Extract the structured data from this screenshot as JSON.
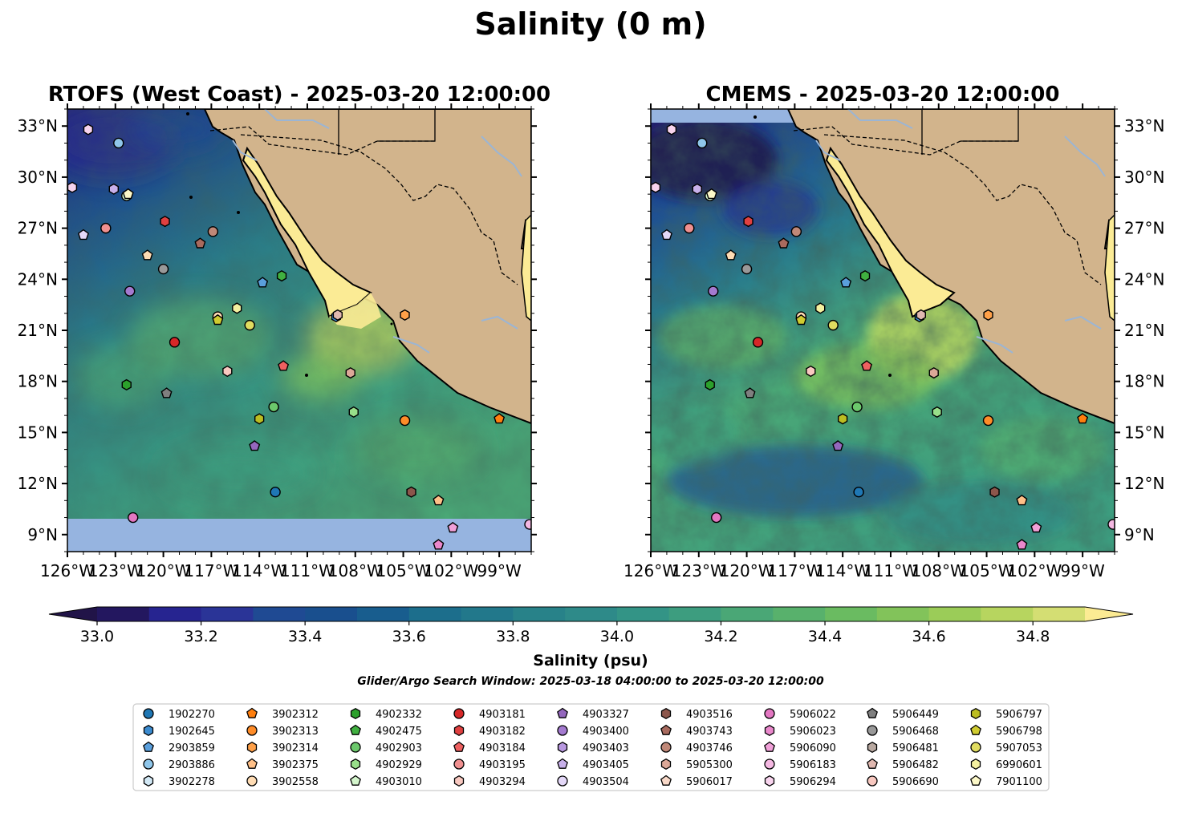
{
  "figure": {
    "title": "Salinity (0 m)",
    "window_note": "Glider/Argo Search Window: 2025-03-18 04:00:00 to 2025-03-20 12:00:00"
  },
  "panels": [
    {
      "title": "RTOFS (West Coast) - 2025-03-20 12:00:00"
    },
    {
      "title": "CMEMS - 2025-03-20 12:00:00"
    }
  ],
  "map_extent": {
    "lon": [
      -126,
      -97
    ],
    "lat": [
      8,
      34
    ]
  },
  "lon_ticks": [
    "126°W",
    "123°W",
    "120°W",
    "117°W",
    "114°W",
    "111°W",
    "108°W",
    "105°W",
    "102°W",
    "99°W"
  ],
  "lat_ticks": [
    "9°N",
    "12°N",
    "15°N",
    "18°N",
    "21°N",
    "24°N",
    "27°N",
    "30°N",
    "33°N"
  ],
  "colorbar": {
    "label": "Salinity (psu)",
    "range": [
      32.9,
      35.0
    ],
    "ticks": [
      "33.0",
      "33.2",
      "33.4",
      "33.6",
      "33.8",
      "34.0",
      "34.2",
      "34.4",
      "34.6",
      "34.8"
    ],
    "extend": "both",
    "colors": [
      "#23175f",
      "#262490",
      "#2a3497",
      "#1f4a93",
      "#194f8e",
      "#185d8e",
      "#1c6e8c",
      "#22788b",
      "#288289",
      "#2e8a89",
      "#339486",
      "#3d9d7f",
      "#4aa776",
      "#58b16c",
      "#6abb61",
      "#82c35a",
      "#9bcc58",
      "#b7d55f",
      "#d4de73"
    ],
    "under_color": "#211448",
    "over_color": "#fceb93"
  },
  "colors": {
    "land": "#d2b48c",
    "nodata": "#96b4e0",
    "gulf": "#fbeb95"
  },
  "legend_items": [
    {
      "label": "1902270",
      "marker": "circle",
      "color": "#1f77b4"
    },
    {
      "label": "1902645",
      "marker": "hexagon",
      "color": "#3b8bd0"
    },
    {
      "label": "2903859",
      "marker": "pentagon",
      "color": "#5a9fdc"
    },
    {
      "label": "2903886",
      "marker": "circle",
      "color": "#8fc6ea"
    },
    {
      "label": "3902278",
      "marker": "hexagon",
      "color": "#d2e8f5"
    },
    {
      "label": "3902312",
      "marker": "pentagon",
      "color": "#ff7f0e"
    },
    {
      "label": "3902313",
      "marker": "circle",
      "color": "#ff8c28"
    },
    {
      "label": "3902314",
      "marker": "hexagon",
      "color": "#ffa048"
    },
    {
      "label": "3902375",
      "marker": "pentagon",
      "color": "#ffc088"
    },
    {
      "label": "3902558",
      "marker": "circle",
      "color": "#ffdcb4"
    },
    {
      "label": "4902332",
      "marker": "hexagon",
      "color": "#2ca02c"
    },
    {
      "label": "4902475",
      "marker": "pentagon",
      "color": "#40b040"
    },
    {
      "label": "4902903",
      "marker": "circle",
      "color": "#6cc86c"
    },
    {
      "label": "4902929",
      "marker": "hexagon",
      "color": "#98df8a"
    },
    {
      "label": "4903010",
      "marker": "pentagon",
      "color": "#d4f5cc"
    },
    {
      "label": "4903181",
      "marker": "circle",
      "color": "#d62728"
    },
    {
      "label": "4903182",
      "marker": "hexagon",
      "color": "#e04040"
    },
    {
      "label": "4903184",
      "marker": "pentagon",
      "color": "#ee6060"
    },
    {
      "label": "4903195",
      "marker": "circle",
      "color": "#f09090"
    },
    {
      "label": "4903294",
      "marker": "hexagon",
      "color": "#f8c8c0"
    },
    {
      "label": "4903327",
      "marker": "pentagon",
      "color": "#9467bd"
    },
    {
      "label": "4903400",
      "marker": "circle",
      "color": "#a47ad0"
    },
    {
      "label": "4903403",
      "marker": "hexagon",
      "color": "#b898e0"
    },
    {
      "label": "4903405",
      "marker": "pentagon",
      "color": "#c8b0ea"
    },
    {
      "label": "4903504",
      "marker": "circle",
      "color": "#e4d8f8"
    },
    {
      "label": "4903516",
      "marker": "hexagon",
      "color": "#8c564b"
    },
    {
      "label": "4903743",
      "marker": "pentagon",
      "color": "#a86a5e"
    },
    {
      "label": "4903746",
      "marker": "circle",
      "color": "#c08878"
    },
    {
      "label": "5905300",
      "marker": "hexagon",
      "color": "#dca898"
    },
    {
      "label": "5906017",
      "marker": "pentagon",
      "color": "#f8d8c8"
    },
    {
      "label": "5906022",
      "marker": "circle",
      "color": "#e377c2"
    },
    {
      "label": "5906023",
      "marker": "hexagon",
      "color": "#ea88cc"
    },
    {
      "label": "5906090",
      "marker": "pentagon",
      "color": "#f0a0d8"
    },
    {
      "label": "5906183",
      "marker": "circle",
      "color": "#f4b8e2"
    },
    {
      "label": "5906294",
      "marker": "hexagon",
      "color": "#f8d4ee"
    },
    {
      "label": "5906449",
      "marker": "pentagon",
      "color": "#7f7f7f"
    },
    {
      "label": "5906468",
      "marker": "circle",
      "color": "#999999"
    },
    {
      "label": "5906481",
      "marker": "hexagon",
      "color": "#b8a8a0"
    },
    {
      "label": "5906482",
      "marker": "pentagon",
      "color": "#e0b8b0"
    },
    {
      "label": "5906690",
      "marker": "circle",
      "color": "#f8c8c0"
    },
    {
      "label": "5906797",
      "marker": "hexagon",
      "color": "#bcbd22"
    },
    {
      "label": "5906798",
      "marker": "pentagon",
      "color": "#d0cc30"
    },
    {
      "label": "5907053",
      "marker": "circle",
      "color": "#e0dc60"
    },
    {
      "label": "6990601",
      "marker": "hexagon",
      "color": "#f4f0a0"
    },
    {
      "label": "7901100",
      "marker": "pentagon",
      "color": "#fcf8c8"
    }
  ],
  "floats": [
    {
      "lon": -124.7,
      "lat": 32.8,
      "marker": "hexagon",
      "color": "#f8d4ee"
    },
    {
      "lon": -122.8,
      "lat": 32.0,
      "marker": "circle",
      "color": "#8fc6ea"
    },
    {
      "lon": -125.7,
      "lat": 29.4,
      "marker": "hexagon",
      "color": "#f8d4ee"
    },
    {
      "lon": -123.1,
      "lat": 29.3,
      "marker": "hexagon",
      "color": "#c8b0ea"
    },
    {
      "lon": -122.3,
      "lat": 28.9,
      "marker": "circle",
      "color": "#d4f5cc"
    },
    {
      "lon": -122.2,
      "lat": 29.0,
      "marker": "pentagon",
      "color": "#fcf8c8"
    },
    {
      "lon": -125.0,
      "lat": 26.6,
      "marker": "pentagon",
      "color": "#e4d8f8"
    },
    {
      "lon": -123.6,
      "lat": 27.0,
      "marker": "circle",
      "color": "#f09090"
    },
    {
      "lon": -119.9,
      "lat": 27.4,
      "marker": "hexagon",
      "color": "#e04040"
    },
    {
      "lon": -116.9,
      "lat": 26.8,
      "marker": "circle",
      "color": "#c08878"
    },
    {
      "lon": -117.7,
      "lat": 26.1,
      "marker": "pentagon",
      "color": "#a86a5e"
    },
    {
      "lon": -121.0,
      "lat": 25.4,
      "marker": "pentagon",
      "color": "#ffdcb4"
    },
    {
      "lon": -120.0,
      "lat": 24.6,
      "marker": "circle",
      "color": "#999999"
    },
    {
      "lon": -113.8,
      "lat": 23.8,
      "marker": "pentagon",
      "color": "#5a9fdc"
    },
    {
      "lon": -112.6,
      "lat": 24.2,
      "marker": "hexagon",
      "color": "#40b040"
    },
    {
      "lon": -122.1,
      "lat": 23.3,
      "marker": "circle",
      "color": "#a47ad0"
    },
    {
      "lon": -115.4,
      "lat": 22.3,
      "marker": "hexagon",
      "color": "#f4f0a0"
    },
    {
      "lon": -116.6,
      "lat": 21.8,
      "marker": "circle",
      "color": "#ffdcb4"
    },
    {
      "lon": -116.6,
      "lat": 21.6,
      "marker": "pentagon",
      "color": "#d0cc30"
    },
    {
      "lon": -114.6,
      "lat": 21.3,
      "marker": "circle",
      "color": "#e0dc60"
    },
    {
      "lon": -109.2,
      "lat": 21.8,
      "marker": "hexagon",
      "color": "#3b8bd0"
    },
    {
      "lon": -109.1,
      "lat": 21.9,
      "marker": "hexagon",
      "color": "#e0b8b0"
    },
    {
      "lon": -104.9,
      "lat": 21.9,
      "marker": "hexagon",
      "color": "#ffa048"
    },
    {
      "lon": -119.3,
      "lat": 20.3,
      "marker": "circle",
      "color": "#d62728"
    },
    {
      "lon": -116.0,
      "lat": 18.6,
      "marker": "hexagon",
      "color": "#f8c8c0"
    },
    {
      "lon": -112.5,
      "lat": 18.9,
      "marker": "pentagon",
      "color": "#ee6060"
    },
    {
      "lon": -108.3,
      "lat": 18.5,
      "marker": "hexagon",
      "color": "#dca898"
    },
    {
      "lon": -122.3,
      "lat": 17.8,
      "marker": "hexagon",
      "color": "#2ca02c"
    },
    {
      "lon": -119.8,
      "lat": 17.3,
      "marker": "pentagon",
      "color": "#7f7f7f"
    },
    {
      "lon": -113.1,
      "lat": 16.5,
      "marker": "circle",
      "color": "#6cc86c"
    },
    {
      "lon": -114.0,
      "lat": 15.8,
      "marker": "hexagon",
      "color": "#bcbd22"
    },
    {
      "lon": -108.1,
      "lat": 16.2,
      "marker": "hexagon",
      "color": "#98df8a"
    },
    {
      "lon": -104.9,
      "lat": 15.7,
      "marker": "circle",
      "color": "#ff8c28"
    },
    {
      "lon": -99.0,
      "lat": 15.8,
      "marker": "pentagon",
      "color": "#ff7f0e"
    },
    {
      "lon": -114.3,
      "lat": 14.2,
      "marker": "pentagon",
      "color": "#9467bd"
    },
    {
      "lon": -113.0,
      "lat": 11.5,
      "marker": "circle",
      "color": "#1f77b4"
    },
    {
      "lon": -104.5,
      "lat": 11.5,
      "marker": "hexagon",
      "color": "#8c564b"
    },
    {
      "lon": -102.8,
      "lat": 11.0,
      "marker": "pentagon",
      "color": "#ffc088"
    },
    {
      "lon": -121.9,
      "lat": 10.0,
      "marker": "circle",
      "color": "#e377c2"
    },
    {
      "lon": -101.9,
      "lat": 9.4,
      "marker": "pentagon",
      "color": "#f0a0d8"
    },
    {
      "lon": -97.1,
      "lat": 9.6,
      "marker": "circle",
      "color": "#f4b8e2"
    },
    {
      "lon": -102.8,
      "lat": 8.4,
      "marker": "pentagon",
      "color": "#ea88cc"
    }
  ]
}
